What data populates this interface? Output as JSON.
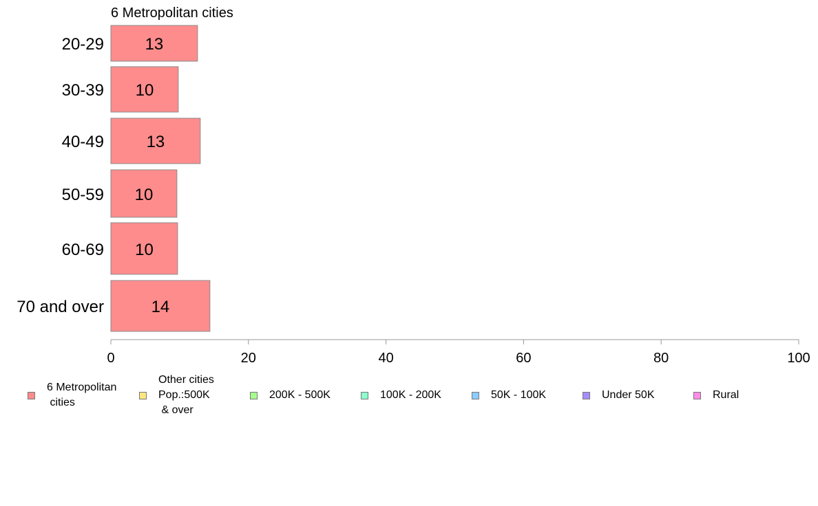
{
  "chart_data": {
    "type": "bar",
    "orientation": "horizontal",
    "title": "6 Metropolitan cities",
    "categories": [
      "20-29",
      "30-39",
      "40-49",
      "50-59",
      "60-69",
      "70 and over"
    ],
    "series": [
      {
        "name": "6 Metropolitan\n cities",
        "values": [
          12.6,
          9.8,
          13.0,
          9.6,
          9.7,
          14.4
        ],
        "labels": [
          "13",
          "10",
          "13",
          "10",
          "10",
          "14"
        ],
        "color": "#ff8c8c"
      }
    ],
    "xlim": [
      0,
      100
    ],
    "xticks": [
      "0",
      "20",
      "40",
      "60",
      "80",
      "100"
    ],
    "grid": false,
    "legend_position": "bottom"
  },
  "legend": [
    {
      "label": "6 Metropolitan\n cities",
      "color": "#ff8c8c"
    },
    {
      "label": "Other cities\nPop.:500K\n & over",
      "color": "#ffe680"
    },
    {
      "label": "200K - 500K",
      "color": "#a6ff8c"
    },
    {
      "label": "100K - 200K",
      "color": "#8cffcc"
    },
    {
      "label": "50K - 100K",
      "color": "#8cccff"
    },
    {
      "label": "Under 50K",
      "color": "#a68cff"
    },
    {
      "label": "Rural",
      "color": "#ff8ce6"
    }
  ]
}
